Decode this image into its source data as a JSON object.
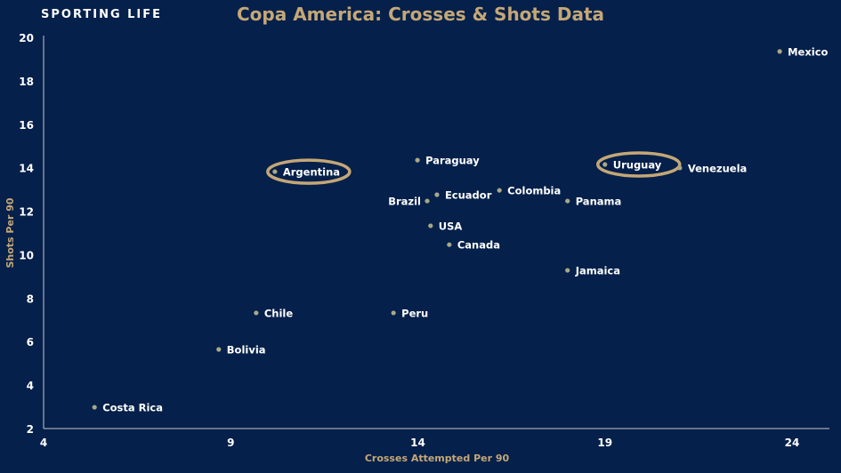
{
  "brand": "SPORTING LIFE",
  "chart_data": {
    "type": "scatter",
    "title": "Copa America: Crosses & Shots Data",
    "xlabel": "Crosses Attempted Per 90",
    "ylabel": "Shots Per 90",
    "xlim": [
      4,
      25.5
    ],
    "ylim": [
      2,
      20
    ],
    "xticks": [
      4,
      9,
      14,
      19,
      24
    ],
    "yticks": [
      2,
      4,
      6,
      8,
      10,
      12,
      14,
      16,
      18,
      20
    ],
    "grid": false,
    "colors": {
      "background": "#05204a",
      "accent": "#c4a777",
      "point": "#a8a888"
    },
    "highlighted": [
      "Argentina",
      "Uruguay"
    ],
    "points": [
      {
        "label": "Mexico",
        "x": 23.67,
        "y": 19.35
      },
      {
        "label": "Argentina",
        "x": 10.18,
        "y": 13.82
      },
      {
        "label": "Paraguay",
        "x": 13.99,
        "y": 14.35
      },
      {
        "label": "Uruguay",
        "x": 19.0,
        "y": 14.15
      },
      {
        "label": "Venezuela",
        "x": 21.0,
        "y": 13.99
      },
      {
        "label": "Ecuador",
        "x": 14.51,
        "y": 12.76
      },
      {
        "label": "Colombia",
        "x": 16.18,
        "y": 12.96
      },
      {
        "label": "Brazil",
        "x": 14.25,
        "y": 12.47
      },
      {
        "label": "Panama",
        "x": 18.0,
        "y": 12.47
      },
      {
        "label": "USA",
        "x": 14.34,
        "y": 11.33
      },
      {
        "label": "Canada",
        "x": 14.84,
        "y": 10.46
      },
      {
        "label": "Jamaica",
        "x": 18.0,
        "y": 9.28
      },
      {
        "label": "Chile",
        "x": 9.68,
        "y": 7.32
      },
      {
        "label": "Peru",
        "x": 13.35,
        "y": 7.32
      },
      {
        "label": "Bolivia",
        "x": 8.68,
        "y": 5.64
      },
      {
        "label": "Costa Rica",
        "x": 5.36,
        "y": 2.98
      }
    ]
  }
}
